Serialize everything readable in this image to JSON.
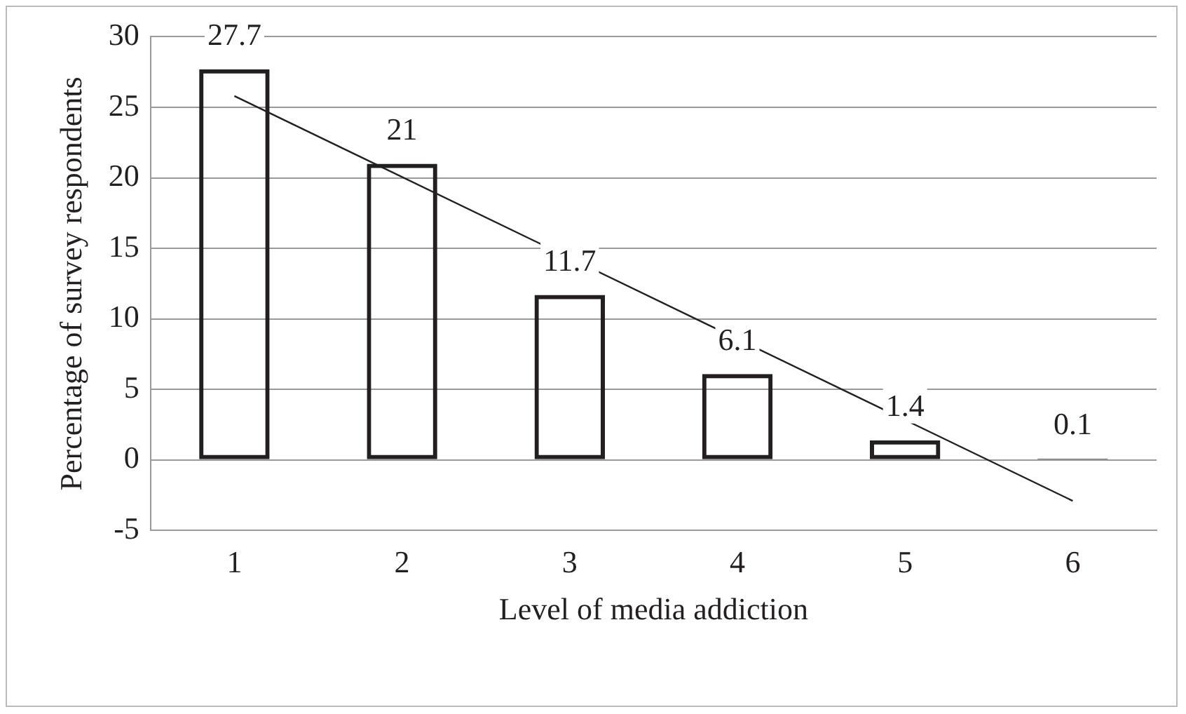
{
  "chart_data": {
    "type": "bar",
    "xlabel": "Level of media addiction",
    "ylabel": "Percentage of survey respondents",
    "categories": [
      "1",
      "2",
      "3",
      "4",
      "5",
      "6"
    ],
    "series": [
      {
        "color": "#231f20",
        "values": [
          27.7,
          21,
          11.7,
          6.1,
          1.4,
          0.1
        ],
        "value_labels": [
          "27.7",
          "21",
          "11.7",
          "6.1",
          "1.4",
          "0.1"
        ]
      },
      {
        "type": "line",
        "color": "#231f20",
        "x": [
          "1",
          "6"
        ],
        "values": [
          25.8,
          -2.9
        ],
        "marker": "none"
      }
    ],
    "ylim": [
      -5,
      30
    ],
    "yticks": [
      -5,
      0,
      5,
      10,
      15,
      20,
      25,
      30
    ],
    "grid": "y",
    "legend": false
  }
}
